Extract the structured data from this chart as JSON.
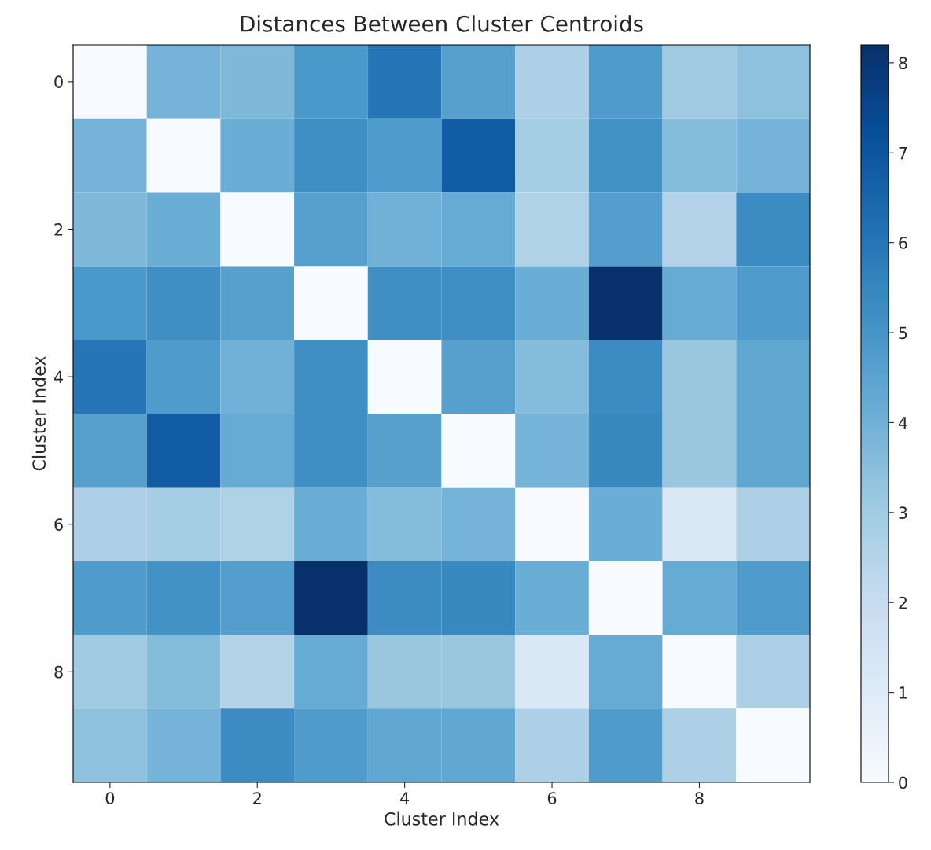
{
  "chart_data": {
    "type": "heatmap",
    "title": "Distances Between Cluster Centroids",
    "xlabel": "Cluster Index",
    "ylabel": "Cluster Index",
    "categories": [
      "0",
      null,
      "2",
      null,
      "4",
      null,
      "6",
      null,
      "8",
      null
    ],
    "y_categories": [
      "0",
      null,
      "2",
      null,
      "4",
      null,
      "6",
      null,
      "8",
      null
    ],
    "cells": [
      [
        0,
        3.9,
        3.7,
        4.9,
        6.0,
        4.6,
        2.7,
        4.8,
        3.0,
        3.4
      ],
      [
        3.9,
        0,
        4.1,
        5.2,
        4.8,
        6.8,
        2.9,
        5.1,
        3.6,
        3.9
      ],
      [
        3.7,
        4.1,
        0,
        4.6,
        4.0,
        4.2,
        2.6,
        4.7,
        2.5,
        5.3
      ],
      [
        4.9,
        5.2,
        4.6,
        0,
        5.2,
        5.2,
        4.1,
        8.2,
        4.2,
        4.8
      ],
      [
        6.0,
        4.8,
        4.0,
        5.2,
        0,
        4.6,
        3.6,
        5.3,
        3.2,
        4.4
      ],
      [
        4.6,
        6.8,
        4.2,
        5.2,
        4.6,
        0,
        3.9,
        5.4,
        3.2,
        4.4
      ],
      [
        2.7,
        2.9,
        2.6,
        4.1,
        3.6,
        3.9,
        0,
        4.1,
        1.2,
        2.7
      ],
      [
        4.8,
        5.1,
        4.7,
        8.2,
        5.3,
        5.4,
        4.1,
        0,
        4.2,
        4.8
      ],
      [
        3.0,
        3.6,
        2.5,
        4.2,
        3.2,
        3.2,
        1.2,
        4.2,
        0,
        2.7
      ],
      [
        3.4,
        3.9,
        5.3,
        4.8,
        4.4,
        4.4,
        2.7,
        4.8,
        2.7,
        0
      ]
    ],
    "clim": [
      0,
      8.2
    ],
    "cticks": [
      0,
      1,
      2,
      3,
      4,
      5,
      6,
      7,
      8
    ]
  }
}
